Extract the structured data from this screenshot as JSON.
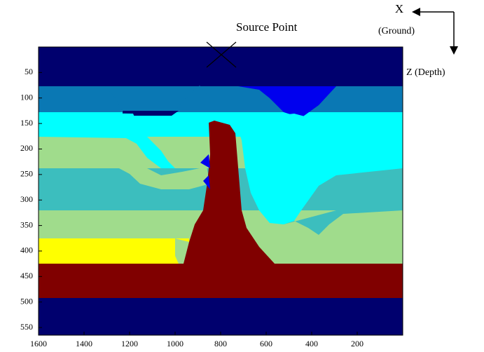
{
  "chart_data": {
    "type": "model",
    "annotations": [
      "Source Point",
      "X",
      "(Ground)",
      "Z (Depth)"
    ],
    "xlim": [
      1600,
      0
    ],
    "xticks": [
      1600,
      1400,
      1200,
      1000,
      800,
      600,
      400,
      200
    ],
    "ylim": [
      0,
      565
    ],
    "yticks": [
      50,
      100,
      150,
      200,
      250,
      300,
      350,
      400,
      450,
      500,
      550
    ]
  }
}
